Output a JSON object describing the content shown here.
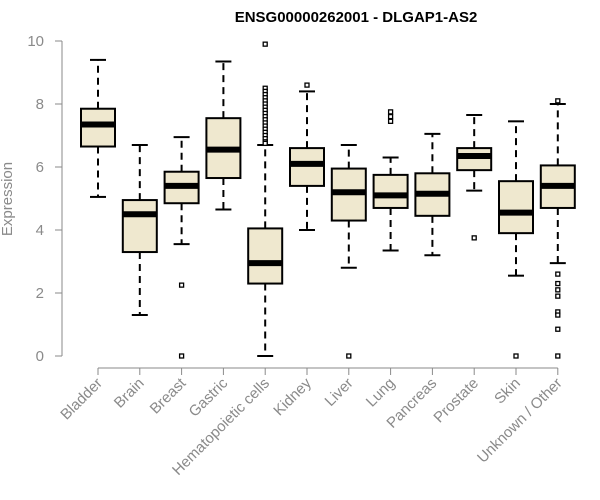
{
  "chart_data": {
    "type": "box",
    "title": "ENSG00000262001 - DLGAP1-AS2",
    "ylabel": "Expression",
    "xlabel": "",
    "ylim": [
      0,
      10
    ],
    "yticks": [
      "0",
      "2",
      "4",
      "6",
      "8",
      "10"
    ],
    "grid": false,
    "colors": {
      "box_fill": "#efe8cf",
      "stroke": "#000000",
      "axis_text": "#8a8a8a"
    },
    "categories": [
      "Bladder",
      "Brain",
      "Breast",
      "Gastric",
      "Hematopoietic cells",
      "Kidney",
      "Liver",
      "Lung",
      "Pancreas",
      "Prostate",
      "Skin",
      "Unknown / Other"
    ],
    "boxes": [
      {
        "q1": 6.65,
        "median": 7.35,
        "q3": 7.85,
        "whisker_low": 5.05,
        "whisker_high": 9.4,
        "outliers": []
      },
      {
        "q1": 3.3,
        "median": 4.5,
        "q3": 4.95,
        "whisker_low": 1.3,
        "whisker_high": 6.7,
        "outliers": []
      },
      {
        "q1": 4.85,
        "median": 5.4,
        "q3": 5.85,
        "whisker_low": 3.55,
        "whisker_high": 6.95,
        "outliers": [
          2.25,
          0.0
        ]
      },
      {
        "q1": 5.65,
        "median": 6.55,
        "q3": 7.55,
        "whisker_low": 4.65,
        "whisker_high": 9.35,
        "outliers": []
      },
      {
        "q1": 2.3,
        "median": 2.95,
        "q3": 4.05,
        "whisker_low": 0.0,
        "whisker_high": 6.7,
        "outliers": [
          9.9,
          8.5,
          8.4,
          8.3,
          8.2,
          8.1,
          8.0,
          7.9,
          7.8,
          7.7,
          7.6,
          7.5,
          7.4,
          7.3,
          7.2,
          7.1,
          7.0,
          6.9,
          6.8,
          6.75
        ]
      },
      {
        "q1": 5.4,
        "median": 6.1,
        "q3": 6.6,
        "whisker_low": 4.0,
        "whisker_high": 8.4,
        "outliers": [
          8.6
        ]
      },
      {
        "q1": 4.3,
        "median": 5.2,
        "q3": 5.95,
        "whisker_low": 2.8,
        "whisker_high": 6.7,
        "outliers": [
          0.0
        ]
      },
      {
        "q1": 4.7,
        "median": 5.1,
        "q3": 5.75,
        "whisker_low": 3.35,
        "whisker_high": 6.3,
        "outliers": [
          7.75,
          7.6,
          7.45
        ]
      },
      {
        "q1": 4.45,
        "median": 5.15,
        "q3": 5.8,
        "whisker_low": 3.2,
        "whisker_high": 7.05,
        "outliers": []
      },
      {
        "q1": 5.9,
        "median": 6.35,
        "q3": 6.6,
        "whisker_low": 5.25,
        "whisker_high": 7.65,
        "outliers": [
          3.75
        ]
      },
      {
        "q1": 3.9,
        "median": 4.55,
        "q3": 5.55,
        "whisker_low": 2.55,
        "whisker_high": 7.45,
        "outliers": [
          0.0
        ]
      },
      {
        "q1": 4.7,
        "median": 5.4,
        "q3": 6.05,
        "whisker_low": 2.95,
        "whisker_high": 8.0,
        "outliers": [
          8.1,
          2.6,
          2.3,
          2.1,
          1.9,
          1.4,
          1.3,
          0.85,
          0.0
        ]
      }
    ]
  }
}
